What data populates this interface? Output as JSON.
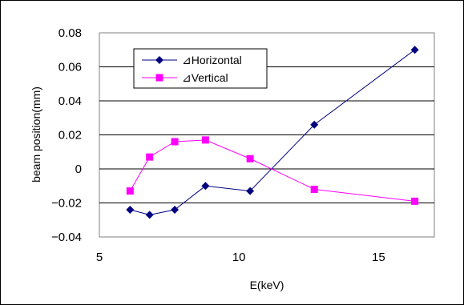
{
  "chart_data": {
    "type": "line",
    "title": "",
    "xlabel": "E(keV)",
    "ylabel": "beam position(mm)",
    "xlim": [
      5,
      17
    ],
    "ylim": [
      -0.04,
      0.08
    ],
    "xticks": [
      "5",
      "10",
      "15"
    ],
    "yticks": [
      "-0.04",
      "-0.02",
      "0",
      "0.02",
      "0.04",
      "0.06",
      "0.08"
    ],
    "grid": "horizontal",
    "legend_position": "top-left",
    "series": [
      {
        "name": "⊿Horizontal",
        "color": "#000080",
        "marker": "diamond",
        "points": [
          [
            6.1,
            -0.024
          ],
          [
            6.8,
            -0.027
          ],
          [
            7.7,
            -0.024
          ],
          [
            8.8,
            -0.01
          ],
          [
            10.4,
            -0.013
          ],
          [
            12.7,
            0.026
          ],
          [
            16.3,
            0.07
          ]
        ]
      },
      {
        "name": "⊿Vertical",
        "color": "#ff00ff",
        "marker": "square",
        "points": [
          [
            6.1,
            -0.013
          ],
          [
            6.8,
            0.007
          ],
          [
            7.7,
            0.016
          ],
          [
            8.8,
            0.017
          ],
          [
            10.4,
            0.006
          ],
          [
            12.7,
            -0.012
          ],
          [
            16.3,
            -0.019
          ]
        ]
      }
    ]
  }
}
